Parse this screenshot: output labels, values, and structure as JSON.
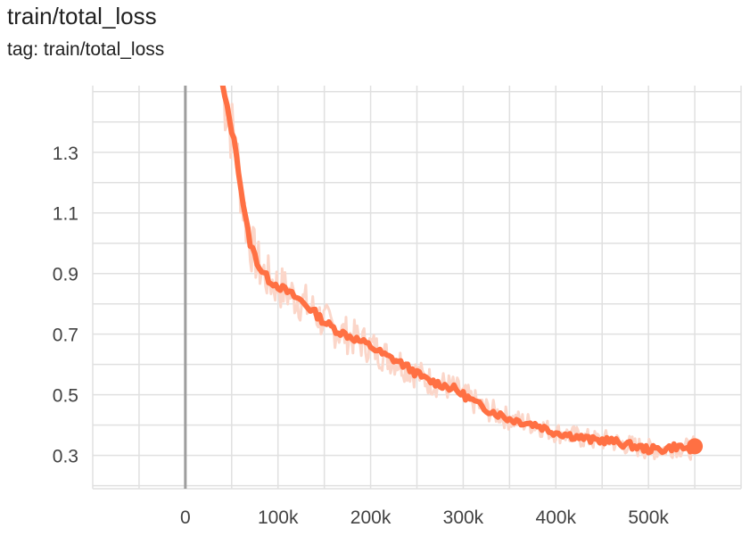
{
  "card": {
    "title": "train/total_loss",
    "tag_line": "tag: train/total_loss"
  },
  "colors": {
    "smoothed": "#ff7043",
    "raw": "#fbd6c9",
    "grid": "#e0e0e0",
    "axis": "#9e9e9e",
    "zero_line": "#9e9e9e"
  },
  "chart_data": {
    "type": "line",
    "title": "train/total_loss",
    "xlabel": "",
    "ylabel": "",
    "xlim": [
      -100000,
      600000
    ],
    "ylim": [
      0.19,
      1.52
    ],
    "xticks": [
      0,
      100000,
      200000,
      300000,
      400000,
      500000
    ],
    "xtick_labels": [
      "0",
      "100k",
      "200k",
      "300k",
      "400k",
      "500k"
    ],
    "yticks": [
      0.3,
      0.5,
      0.7,
      0.9,
      1.1,
      1.3
    ],
    "ytick_labels": [
      "0.3",
      "0.5",
      "0.7",
      "0.9",
      "1.1",
      "1.3"
    ],
    "grid": true,
    "series": [
      {
        "role": "smoothed",
        "x": [
          40000,
          55000,
          60000,
          65000,
          70000,
          80000,
          90000,
          100000,
          110000,
          125000,
          140000,
          150000,
          165000,
          180000,
          200000,
          215000,
          230000,
          245000,
          260000,
          270000,
          280000,
          290000,
          300000,
          310000,
          320000,
          335000,
          350000,
          365000,
          380000,
          395000,
          410000,
          425000,
          440000,
          455000,
          470000,
          485000,
          500000,
          515000,
          530000,
          545000,
          550000
        ],
        "y": [
          1.52,
          1.3,
          1.18,
          1.08,
          1.0,
          0.92,
          0.88,
          0.86,
          0.84,
          0.81,
          0.77,
          0.74,
          0.71,
          0.69,
          0.66,
          0.63,
          0.61,
          0.58,
          0.55,
          0.54,
          0.53,
          0.52,
          0.5,
          0.48,
          0.46,
          0.44,
          0.42,
          0.41,
          0.4,
          0.38,
          0.37,
          0.36,
          0.35,
          0.35,
          0.34,
          0.33,
          0.32,
          0.32,
          0.33,
          0.32,
          0.33
        ]
      }
    ]
  }
}
